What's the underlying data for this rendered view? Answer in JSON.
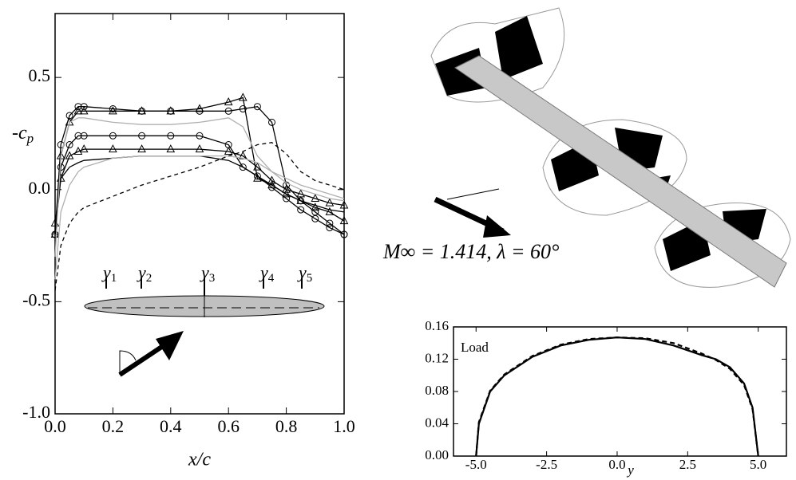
{
  "chart_data": [
    {
      "type": "line",
      "xlabel": "x/c",
      "ylabel": "-c",
      "ylabel_subscript": "p",
      "xlim": [
        0,
        1
      ],
      "ylim": [
        -1.0,
        0.785
      ],
      "xticks": [
        {
          "value": 0,
          "label": "0.0"
        },
        0.2,
        0.4,
        0.6,
        0.8,
        {
          "value": 1,
          "label": "1.0"
        }
      ],
      "yticks": [
        {
          "value": -1,
          "label": "-1.0"
        },
        -0.5,
        {
          "value": 0,
          "label": "0.0"
        },
        0.5
      ],
      "x": [
        0,
        0.02,
        0.05,
        0.08,
        0.1,
        0.2,
        0.3,
        0.4,
        0.5,
        0.6,
        0.65,
        0.7,
        0.75,
        0.8,
        0.85,
        0.9,
        0.95,
        1.0
      ],
      "series": [
        {
          "color": "#000000",
          "marker": "circle",
          "dash": "none",
          "values": [
            -0.2,
            0.2,
            0.33,
            0.37,
            0.37,
            0.36,
            0.35,
            0.35,
            0.35,
            0.35,
            0.36,
            0.37,
            0.3,
            0.02,
            -0.05,
            -0.1,
            -0.15,
            -0.2
          ]
        },
        {
          "color": "#000000",
          "marker": "triangle",
          "dash": "none",
          "values": [
            -0.2,
            0.15,
            0.3,
            0.35,
            0.35,
            0.35,
            0.35,
            0.35,
            0.36,
            0.39,
            0.41,
            0.05,
            0.02,
            -0.02,
            -0.05,
            -0.08,
            -0.1,
            -0.14
          ]
        },
        {
          "color": "#000000",
          "marker": "circle",
          "dash": "none",
          "values": [
            -0.2,
            0.1,
            0.2,
            0.24,
            0.24,
            0.24,
            0.24,
            0.24,
            0.24,
            0.2,
            0.1,
            0.06,
            0.01,
            -0.04,
            -0.09,
            -0.13,
            -0.17,
            -0.2
          ]
        },
        {
          "color": "#000000",
          "marker": "triangle",
          "dash": "none",
          "values": [
            -0.15,
            0.05,
            0.15,
            0.17,
            0.18,
            0.18,
            0.18,
            0.18,
            0.18,
            0.17,
            0.15,
            0.1,
            0.04,
            0.0,
            -0.02,
            -0.04,
            -0.06,
            -0.07
          ]
        },
        {
          "color": "#000000",
          "marker": "none",
          "dash": "none",
          "values": [
            -0.2,
            0.05,
            0.1,
            0.12,
            0.13,
            0.14,
            0.15,
            0.15,
            0.15,
            0.13,
            0.1,
            0.06,
            0.02,
            -0.02,
            -0.05,
            -0.07,
            -0.09,
            -0.1
          ]
        },
        {
          "color": "#b0b0b0",
          "marker": "none",
          "dash": "none",
          "values": [
            -0.4,
            -0.1,
            0.02,
            0.08,
            0.1,
            0.14,
            0.15,
            0.15,
            0.15,
            0.15,
            0.14,
            0.12,
            0.08,
            0.03,
            0.0,
            -0.02,
            -0.04,
            -0.05
          ]
        },
        {
          "color": "#b0b0b0",
          "marker": "none",
          "dash": "none",
          "values": [
            -0.3,
            0.15,
            0.3,
            0.32,
            0.32,
            0.3,
            0.29,
            0.29,
            0.3,
            0.32,
            0.28,
            0.15,
            0.08,
            0.05,
            0.02,
            0.0,
            -0.02,
            -0.04
          ]
        },
        {
          "color": "#000000",
          "marker": "none",
          "dash": "5,4",
          "values": [
            -0.45,
            -0.25,
            -0.15,
            -0.1,
            -0.08,
            -0.03,
            0.02,
            0.06,
            0.1,
            0.15,
            0.17,
            0.2,
            0.21,
            0.16,
            0.08,
            0.04,
            0.02,
            0.0
          ]
        }
      ],
      "stations": [
        {
          "symbol": "y",
          "index": "1"
        },
        {
          "symbol": "y",
          "index": "2"
        },
        {
          "symbol": "y",
          "index": "3"
        },
        {
          "symbol": "y",
          "index": "4"
        },
        {
          "symbol": "y",
          "index": "5"
        }
      ]
    },
    {
      "type": "line",
      "xlabel": "y",
      "annotation": "Load",
      "xlim": [
        -5.8,
        6.0
      ],
      "ylim": [
        0,
        0.16
      ],
      "xticks": [
        {
          "value": -5,
          "label": "-5.0"
        },
        -2.5,
        {
          "value": 0,
          "label": "0.0"
        },
        2.5,
        {
          "value": 5,
          "label": "5.0"
        }
      ],
      "yticks": [
        {
          "value": 0,
          "label": "0.00"
        },
        {
          "value": 0.04,
          "label": "0.04"
        },
        {
          "value": 0.08,
          "label": "0.08"
        },
        {
          "value": 0.12,
          "label": "0.12"
        },
        {
          "value": 0.16,
          "label": "0.16"
        }
      ],
      "x": [
        -5,
        -4.9,
        -4.5,
        -4,
        -3,
        -2,
        -1,
        0,
        1,
        2,
        3,
        3.5,
        4,
        4.5,
        4.8,
        5
      ],
      "series": [
        {
          "color": "#000000",
          "marker": "none",
          "dash": "none",
          "values": [
            0,
            0.04,
            0.08,
            0.1,
            0.123,
            0.137,
            0.144,
            0.147,
            0.145,
            0.137,
            0.125,
            0.12,
            0.11,
            0.09,
            0.06,
            0
          ]
        },
        {
          "color": "#000000",
          "marker": "none",
          "dash": "6,4",
          "values": [
            0,
            0.042,
            0.081,
            0.101,
            0.124,
            0.138,
            0.145,
            0.147,
            0.146,
            0.14,
            0.127,
            0.119,
            0.108,
            0.088,
            0.058,
            0
          ]
        }
      ]
    }
  ],
  "flow_label": "M∞ = 1.414, λ = 60°"
}
